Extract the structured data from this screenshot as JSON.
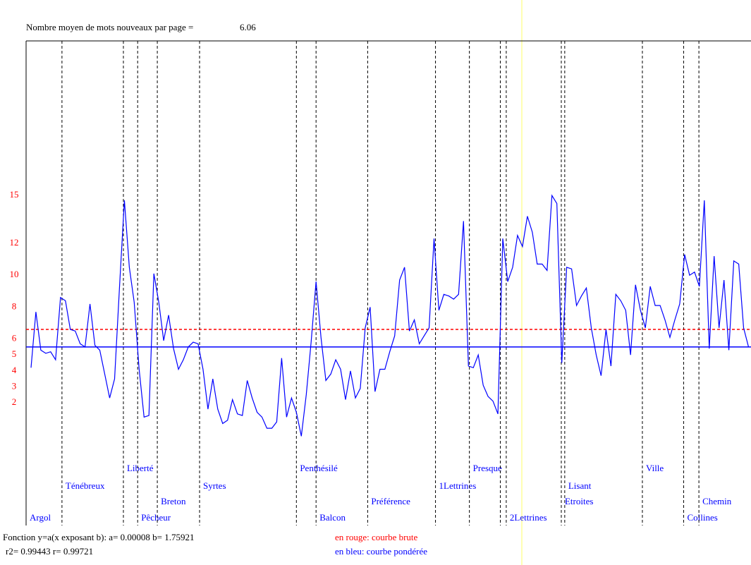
{
  "chart_data": {
    "type": "line",
    "title": "Nombre moyen de mots nouveaux par page =",
    "title_value": "6.06",
    "ylim": [
      -5.7,
      24.7
    ],
    "xlim": [
      -1,
      146.5
    ],
    "yticks": [
      2,
      3,
      4,
      5,
      6,
      8,
      10,
      12,
      15
    ],
    "ytick_color": "#ff0000",
    "series": [
      {
        "color": "#0000ff",
        "values": [
          4.2,
          7.7,
          5.3,
          5.1,
          5.2,
          4.7,
          8.6,
          8.4,
          6.6,
          6.5,
          5.7,
          5.5,
          8.2,
          5.6,
          5.3,
          3.8,
          2.3,
          3.5,
          9.2,
          14.7,
          10.5,
          8.3,
          4.1,
          1.1,
          1.2,
          10.1,
          8.3,
          5.9,
          7.5,
          5.4,
          4.1,
          4.7,
          5.5,
          5.8,
          5.7,
          4.1,
          1.6,
          3.5,
          1.6,
          0.7,
          0.9,
          2.2,
          1.3,
          1.2,
          3.4,
          2.3,
          1.4,
          1.1,
          0.4,
          0.4,
          0.8,
          4.8,
          1.1,
          2.3,
          1.4,
          -0.1,
          2.5,
          5.8,
          9.6,
          6.1,
          3.4,
          3.8,
          4.7,
          4.1,
          2.2,
          4.0,
          2.3,
          2.9,
          6.7,
          8.0,
          2.7,
          4.1,
          4.1,
          5.2,
          6.2,
          9.7,
          10.5,
          6.5,
          7.2,
          5.7,
          6.2,
          6.7,
          12.3,
          7.8,
          8.8,
          8.7,
          8.5,
          8.8,
          13.4,
          4.3,
          4.2,
          5.0,
          3.1,
          2.4,
          2.1,
          1.3,
          12.3,
          9.6,
          10.5,
          12.5,
          11.8,
          13.7,
          12.7,
          10.7,
          10.7,
          10.3,
          15.0,
          14.5,
          4.5,
          10.5,
          10.4,
          8.1,
          8.7,
          9.2,
          6.7,
          5.0,
          3.7,
          6.6,
          4.3,
          8.8,
          8.4,
          7.8,
          5.0,
          9.4,
          7.8,
          6.7,
          9.3,
          8.1,
          8.1,
          7.2,
          6.1,
          7.2,
          8.2,
          11.3,
          10.0,
          10.2,
          9.3,
          14.7,
          5.4,
          11.2,
          6.7,
          9.7,
          5.3,
          10.9,
          10.7,
          6.7,
          5.5
        ]
      }
    ],
    "reference_lines": [
      {
        "value": 6.6,
        "color": "#ff0000",
        "dashed": true
      },
      {
        "value": 5.5,
        "color": "#0000ff",
        "dashed": false
      }
    ],
    "dividers": [
      {
        "x": -1,
        "label": "Argol"
      },
      {
        "x": 6.3,
        "label": "Ténébreux"
      },
      {
        "x": 18.8,
        "label": "Liberté"
      },
      {
        "x": 21.7,
        "label": "Pêcheur"
      },
      {
        "x": 25.7,
        "label": "Breton"
      },
      {
        "x": 34.3,
        "label": "Syrtes"
      },
      {
        "x": 54.0,
        "label": "Penthésilé"
      },
      {
        "x": 58.0,
        "label": "Balcon"
      },
      {
        "x": 68.5,
        "label": "Préférence"
      },
      {
        "x": 82.3,
        "label": "1Lettrines"
      },
      {
        "x": 89.2,
        "label": "Presque"
      },
      {
        "x": 95.5
      },
      {
        "x": 96.7,
        "label": "2Lettrines"
      },
      {
        "x": 107.9,
        "label": "Etroites"
      },
      {
        "x": 108.6,
        "label": "Lisant"
      },
      {
        "x": 124.4,
        "label": "Ville"
      },
      {
        "x": 132.8,
        "label": "Collines"
      },
      {
        "x": 135.9,
        "label": "Chemin"
      }
    ],
    "footer": {
      "fit": "Fonction y=a(x exposant b): a= 0.00008  b= 1.75921",
      "stats": "r2= 0.99443  r= 0.99721",
      "legend_red": "en rouge: courbe brute",
      "legend_blue": "en bleu: courbe pondérée"
    }
  }
}
